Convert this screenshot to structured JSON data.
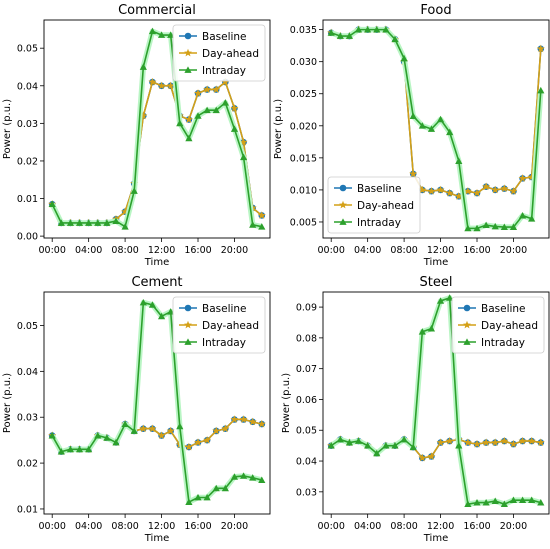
{
  "figure": {
    "background": "#ffffff"
  },
  "series_styles": [
    {
      "name": "Baseline",
      "color": "#1f77b4",
      "marker": "circle"
    },
    {
      "name": "Day-ahead",
      "color": "#d4a017",
      "marker": "star"
    },
    {
      "name": "Intraday",
      "color": "#2ca02c",
      "marker": "triangle"
    }
  ],
  "chart_data": [
    {
      "type": "line",
      "title": "Commercial",
      "xlabel": "Time",
      "ylabel": "Power (p.u.)",
      "x": [
        0,
        1,
        2,
        3,
        4,
        5,
        6,
        7,
        8,
        9,
        10,
        11,
        12,
        13,
        14,
        15,
        16,
        17,
        18,
        19,
        20,
        21,
        22,
        23
      ],
      "x_ticks": [
        0,
        4,
        8,
        12,
        16,
        20
      ],
      "x_tick_labels": [
        "00:00",
        "04:00",
        "08:00",
        "12:00",
        "16:00",
        "20:00"
      ],
      "xlim": [
        -0.9,
        23.9
      ],
      "ylim": [
        -0.0005,
        0.0575
      ],
      "y_ticks": [
        0.0,
        0.01,
        0.02,
        0.03,
        0.04,
        0.05
      ],
      "y_tick_labels": [
        "0.00",
        "0.01",
        "0.02",
        "0.03",
        "0.04",
        "0.05"
      ],
      "legend_position": "top-right",
      "series": [
        {
          "name": "Baseline",
          "values": [
            0.0085,
            0.0035,
            0.0035,
            0.0035,
            0.0035,
            0.0035,
            0.0035,
            0.0045,
            0.0065,
            0.014,
            0.032,
            0.041,
            0.04,
            0.04,
            0.032,
            0.031,
            0.038,
            0.039,
            0.039,
            0.041,
            0.034,
            0.025,
            0.0075,
            0.0055
          ]
        },
        {
          "name": "Day-ahead",
          "values": [
            0.0085,
            0.0035,
            0.0035,
            0.0035,
            0.0035,
            0.0035,
            0.0035,
            0.0045,
            0.0065,
            0.014,
            0.032,
            0.041,
            0.04,
            0.04,
            0.032,
            0.031,
            0.038,
            0.039,
            0.039,
            0.041,
            0.034,
            0.025,
            0.0075,
            0.0055
          ]
        },
        {
          "name": "Intraday",
          "values": [
            0.0085,
            0.0035,
            0.0035,
            0.0035,
            0.0035,
            0.0035,
            0.0035,
            0.004,
            0.0025,
            0.012,
            0.045,
            0.0545,
            0.0535,
            0.0535,
            0.03,
            0.026,
            0.032,
            0.0335,
            0.0335,
            0.0355,
            0.0285,
            0.021,
            0.003,
            0.0025
          ]
        }
      ]
    },
    {
      "type": "line",
      "title": "Food",
      "xlabel": "Time",
      "ylabel": "Power (p.u.)",
      "x": [
        0,
        1,
        2,
        3,
        4,
        5,
        6,
        7,
        8,
        9,
        10,
        11,
        12,
        13,
        14,
        15,
        16,
        17,
        18,
        19,
        20,
        21,
        22,
        23
      ],
      "x_ticks": [
        0,
        4,
        8,
        12,
        16,
        20
      ],
      "x_tick_labels": [
        "00:00",
        "04:00",
        "08:00",
        "12:00",
        "16:00",
        "20:00"
      ],
      "xlim": [
        -0.9,
        23.9
      ],
      "ylim": [
        0.0025,
        0.0365
      ],
      "y_ticks": [
        0.005,
        0.01,
        0.015,
        0.02,
        0.025,
        0.03,
        0.035
      ],
      "y_tick_labels": [
        "0.005",
        "0.010",
        "0.015",
        "0.020",
        "0.025",
        "0.030",
        "0.035"
      ],
      "legend_position": "bottom-left",
      "series": [
        {
          "name": "Baseline",
          "values": [
            0.0345,
            0.034,
            0.034,
            0.035,
            0.035,
            0.035,
            0.035,
            0.0335,
            0.03,
            0.0125,
            0.01,
            0.0098,
            0.01,
            0.0095,
            0.009,
            0.0098,
            0.0095,
            0.0105,
            0.01,
            0.0102,
            0.0098,
            0.0118,
            0.012,
            0.032
          ]
        },
        {
          "name": "Day-ahead",
          "values": [
            0.0345,
            0.034,
            0.034,
            0.035,
            0.035,
            0.035,
            0.035,
            0.0335,
            0.03,
            0.0125,
            0.01,
            0.0098,
            0.01,
            0.0095,
            0.009,
            0.0098,
            0.0095,
            0.0105,
            0.01,
            0.0102,
            0.0098,
            0.0118,
            0.012,
            0.032
          ]
        },
        {
          "name": "Intraday",
          "values": [
            0.0345,
            0.034,
            0.034,
            0.035,
            0.035,
            0.035,
            0.035,
            0.0335,
            0.0305,
            0.0215,
            0.02,
            0.0195,
            0.021,
            0.019,
            0.0145,
            0.004,
            0.004,
            0.0045,
            0.0043,
            0.0042,
            0.0042,
            0.006,
            0.0055,
            0.0255
          ]
        }
      ]
    },
    {
      "type": "line",
      "title": "Cement",
      "xlabel": "Time",
      "ylabel": "Power (p.u.)",
      "x": [
        0,
        1,
        2,
        3,
        4,
        5,
        6,
        7,
        8,
        9,
        10,
        11,
        12,
        13,
        14,
        15,
        16,
        17,
        18,
        19,
        20,
        21,
        22,
        23
      ],
      "x_ticks": [
        0,
        4,
        8,
        12,
        16,
        20
      ],
      "x_tick_labels": [
        "00:00",
        "04:00",
        "08:00",
        "12:00",
        "16:00",
        "20:00"
      ],
      "xlim": [
        -0.9,
        23.9
      ],
      "ylim": [
        0.0089,
        0.0573
      ],
      "y_ticks": [
        0.01,
        0.02,
        0.03,
        0.04,
        0.05
      ],
      "y_tick_labels": [
        "0.01",
        "0.02",
        "0.03",
        "0.04",
        "0.05"
      ],
      "legend_position": "top-right",
      "series": [
        {
          "name": "Baseline",
          "values": [
            0.026,
            0.0225,
            0.023,
            0.023,
            0.023,
            0.026,
            0.0255,
            0.0245,
            0.0285,
            0.027,
            0.0275,
            0.0275,
            0.026,
            0.027,
            0.024,
            0.0235,
            0.0245,
            0.025,
            0.027,
            0.0275,
            0.0295,
            0.0295,
            0.029,
            0.0285
          ]
        },
        {
          "name": "Day-ahead",
          "values": [
            0.026,
            0.0225,
            0.023,
            0.023,
            0.023,
            0.026,
            0.0255,
            0.0245,
            0.0285,
            0.027,
            0.0275,
            0.0275,
            0.026,
            0.027,
            0.024,
            0.0235,
            0.0245,
            0.025,
            0.027,
            0.0275,
            0.0295,
            0.0295,
            0.029,
            0.0285
          ]
        },
        {
          "name": "Intraday",
          "values": [
            0.026,
            0.0225,
            0.023,
            0.023,
            0.023,
            0.026,
            0.0255,
            0.0245,
            0.0285,
            0.027,
            0.055,
            0.0545,
            0.052,
            0.053,
            0.028,
            0.0115,
            0.0125,
            0.0125,
            0.0145,
            0.0145,
            0.017,
            0.0172,
            0.0168,
            0.0163
          ]
        }
      ]
    },
    {
      "type": "line",
      "title": "Steel",
      "xlabel": "Time",
      "ylabel": "Power (p.u.)",
      "x": [
        0,
        1,
        2,
        3,
        4,
        5,
        6,
        7,
        8,
        9,
        10,
        11,
        12,
        13,
        14,
        15,
        16,
        17,
        18,
        19,
        20,
        21,
        22,
        23
      ],
      "x_ticks": [
        0,
        4,
        8,
        12,
        16,
        20
      ],
      "x_tick_labels": [
        "00:00",
        "04:00",
        "08:00",
        "12:00",
        "16:00",
        "20:00"
      ],
      "xlim": [
        -0.9,
        23.9
      ],
      "ylim": [
        0.0228,
        0.0949
      ],
      "y_ticks": [
        0.03,
        0.04,
        0.05,
        0.06,
        0.07,
        0.08,
        0.09
      ],
      "y_tick_labels": [
        "0.03",
        "0.04",
        "0.05",
        "0.06",
        "0.07",
        "0.08",
        "0.09"
      ],
      "legend_position": "top-right",
      "series": [
        {
          "name": "Baseline",
          "values": [
            0.045,
            0.047,
            0.046,
            0.0465,
            0.045,
            0.0425,
            0.045,
            0.045,
            0.047,
            0.0445,
            0.041,
            0.0415,
            0.046,
            0.0465,
            0.047,
            0.046,
            0.0455,
            0.046,
            0.046,
            0.0465,
            0.0455,
            0.0465,
            0.0465,
            0.046
          ]
        },
        {
          "name": "Day-ahead",
          "values": [
            0.045,
            0.047,
            0.046,
            0.0465,
            0.045,
            0.0425,
            0.045,
            0.045,
            0.047,
            0.0445,
            0.041,
            0.0415,
            0.046,
            0.0465,
            0.047,
            0.046,
            0.0455,
            0.046,
            0.046,
            0.0465,
            0.0455,
            0.0465,
            0.0465,
            0.046
          ]
        },
        {
          "name": "Intraday",
          "values": [
            0.045,
            0.047,
            0.046,
            0.0465,
            0.045,
            0.0425,
            0.045,
            0.045,
            0.047,
            0.0445,
            0.082,
            0.083,
            0.092,
            0.093,
            0.045,
            0.026,
            0.0265,
            0.0265,
            0.027,
            0.026,
            0.0273,
            0.0273,
            0.0273,
            0.0265
          ]
        }
      ]
    }
  ]
}
